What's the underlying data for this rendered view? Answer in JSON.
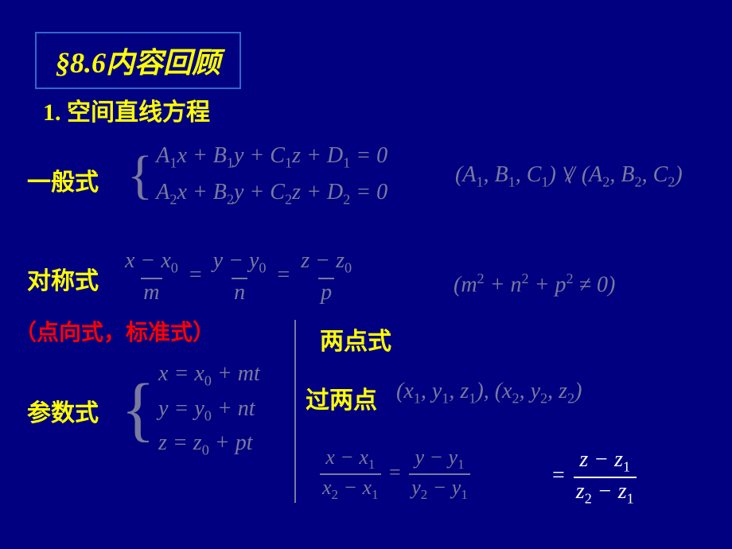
{
  "title": "§8.6内容回顾",
  "heading1": "1. 空间直线方程",
  "labels": {
    "general": "一般式",
    "symmetric": "对称式",
    "note": "（点向式，标准式）",
    "parametric": "参数式",
    "twopoint": "两点式",
    "through": "过两点"
  },
  "general": {
    "row1": "A<span class='sub'>1</span>x + B<span class='sub'>1</span>y + C<span class='sub'>1</span>z + D<span class='sub'>1</span> = 0",
    "row2": "A<span class='sub'>2</span>x + B<span class='sub'>2</span>y + C<span class='sub'>2</span>z + D<span class='sub'>2</span> = 0",
    "cond_left": "(A<span class='sub'>1</span>, B<span class='sub'>1</span>, C<span class='sub'>1</span>)",
    "cond_right": "(A<span class='sub'>2</span>, B<span class='sub'>2</span>, C<span class='sub'>2</span>)"
  },
  "symmetric": {
    "f1n": "x − x<span class='sub'>0</span>",
    "f1d": "m",
    "f2n": "y − y<span class='sub'>0</span>",
    "f2d": "n",
    "f3n": "z − z<span class='sub'>0</span>",
    "f3d": "p",
    "cond": "(m<span class='sup'>2</span> + n<span class='sup'>2</span> + p<span class='sup'>2</span> ≠ 0)"
  },
  "parametric": {
    "r1": "x = x<span class='sub'>0</span> + mt",
    "r2": "y = y<span class='sub'>0</span> + nt",
    "r3": "z = z<span class='sub'>0</span> + pt"
  },
  "twopoint": {
    "points": "(x<span class='sub'>1</span>, y<span class='sub'>1</span>, z<span class='sub'>1</span>), (x<span class='sub'>2</span>, y<span class='sub'>2</span>, z<span class='sub'>2</span>)",
    "f1n": "x − x<span class='sub'>1</span>",
    "f1d": "x<span class='sub'>2</span> − x<span class='sub'>1</span>",
    "f2n": "y − y<span class='sub'>1</span>",
    "f2d": "y<span class='sub'>2</span> − y<span class='sub'>1</span>",
    "f3n": "z − z<span class='sub'>1</span>",
    "f3d": "z<span class='sub'>2</span> − z<span class='sub'>1</span>"
  },
  "colors": {
    "bg": "#000080",
    "yellow": "#ffff00",
    "red": "#ff0000",
    "mathdim": "#7a7a9e",
    "white": "#ffffff",
    "border": "#3366cc"
  }
}
